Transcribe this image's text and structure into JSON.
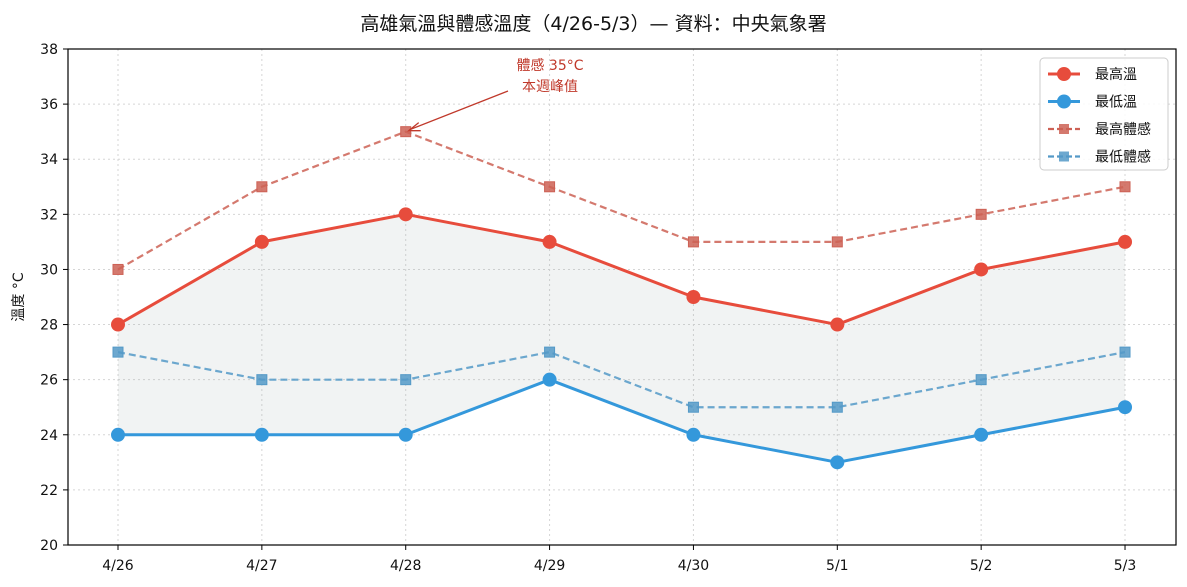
{
  "chart_data": {
    "type": "line",
    "title": "高雄氣溫與體感溫度（4/26-5/3）— 資料：中央氣象署",
    "xlabel": "",
    "ylabel": "溫度 °C",
    "categories": [
      "4/26",
      "4/27",
      "4/28",
      "4/29",
      "4/30",
      "5/1",
      "5/2",
      "5/3"
    ],
    "ylim": [
      20,
      38
    ],
    "yticks": [
      20,
      22,
      24,
      26,
      28,
      30,
      32,
      34,
      36,
      38
    ],
    "grid": true,
    "legend_position": "top-right",
    "series": [
      {
        "name": "最高溫",
        "values": [
          28,
          31,
          32,
          31,
          29,
          28,
          30,
          31
        ],
        "color": "#e74c3c",
        "style": "solid",
        "marker": "circle"
      },
      {
        "name": "最低溫",
        "values": [
          24,
          24,
          24,
          26,
          24,
          23,
          24,
          25
        ],
        "color": "#3498db",
        "style": "solid",
        "marker": "circle"
      },
      {
        "name": "最高體感",
        "values": [
          30,
          33,
          35,
          33,
          31,
          31,
          32,
          33
        ],
        "color": "#cd6155",
        "style": "dashed",
        "marker": "square"
      },
      {
        "name": "最低體感",
        "values": [
          27,
          26,
          26,
          27,
          25,
          25,
          26,
          27
        ],
        "color": "#5499c7",
        "style": "dashed",
        "marker": "square"
      }
    ],
    "fill_between": {
      "upper": "最高溫",
      "lower": "最低溫",
      "color": "#95a5a6"
    },
    "annotation": {
      "lines": [
        "體感 35°C",
        "本週峰值"
      ],
      "target_category": "4/28",
      "target_value": 35,
      "color": "#c0392b"
    }
  }
}
